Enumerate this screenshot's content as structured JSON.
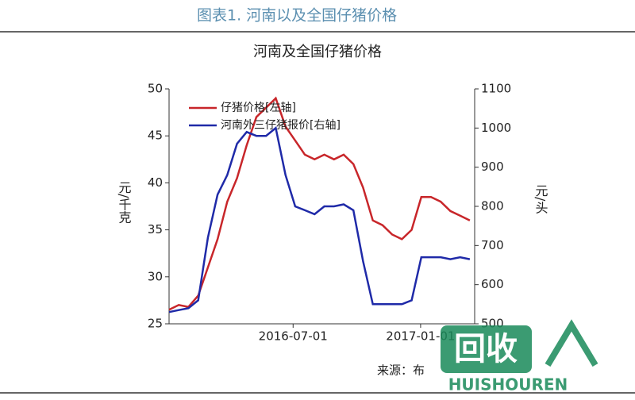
{
  "header": {
    "title": "图表1. 河南以及全国仔猪价格"
  },
  "chart_data": {
    "type": "line",
    "title": "河南及全国仔猪价格",
    "x": [
      "2016-01-04",
      "2016-01-18",
      "2016-02-01",
      "2016-02-15",
      "2016-02-29",
      "2016-03-14",
      "2016-03-28",
      "2016-04-11",
      "2016-04-25",
      "2016-05-09",
      "2016-05-23",
      "2016-06-06",
      "2016-06-20",
      "2016-07-04",
      "2016-07-18",
      "2016-08-01",
      "2016-08-15",
      "2016-08-29",
      "2016-09-12",
      "2016-09-26",
      "2016-10-10",
      "2016-10-24",
      "2016-11-07",
      "2016-11-21",
      "2016-12-05",
      "2016-12-19",
      "2017-01-02",
      "2017-01-16",
      "2017-01-30",
      "2017-02-13",
      "2017-02-27",
      "2017-03-13"
    ],
    "xlim": [
      "2016-01-04",
      "2017-03-20"
    ],
    "xticks": [
      "2016-07-01",
      "2017-01-01"
    ],
    "ylim": [
      25,
      50
    ],
    "yticks": [
      25,
      30,
      35,
      40,
      45,
      50
    ],
    "y2lim": [
      500,
      1100
    ],
    "y2ticks": [
      500,
      600,
      700,
      800,
      900,
      1000,
      1100
    ],
    "y_label": "元/千克",
    "y2_label": "元/头",
    "legend": "upper left",
    "series": [
      {
        "name": "仔猪价格[左轴]",
        "color": "#c8262a",
        "values": [
          26.5,
          27,
          26.8,
          28,
          31,
          34,
          38,
          40.5,
          44,
          47,
          48,
          49,
          46,
          44.5,
          43,
          42.5,
          43,
          42.5,
          43,
          42,
          39.5,
          36,
          35.5,
          34.5,
          34,
          35,
          38.5,
          38.5,
          38,
          37,
          36.5,
          36
        ]
      },
      {
        "name": "河南外三仔猪报价[右轴]",
        "color": "#1f2aa8",
        "axis": "y2",
        "values": [
          530,
          535,
          540,
          560,
          720,
          830,
          880,
          960,
          990,
          980,
          980,
          1000,
          880,
          800,
          790,
          780,
          800,
          800,
          805,
          790,
          660,
          550,
          550,
          550,
          550,
          560,
          670,
          670,
          670,
          665,
          670,
          665
        ]
      }
    ]
  },
  "source": "来源：布",
  "watermark": {
    "logo": "回收",
    "brand": "HUISHOUREN"
  }
}
